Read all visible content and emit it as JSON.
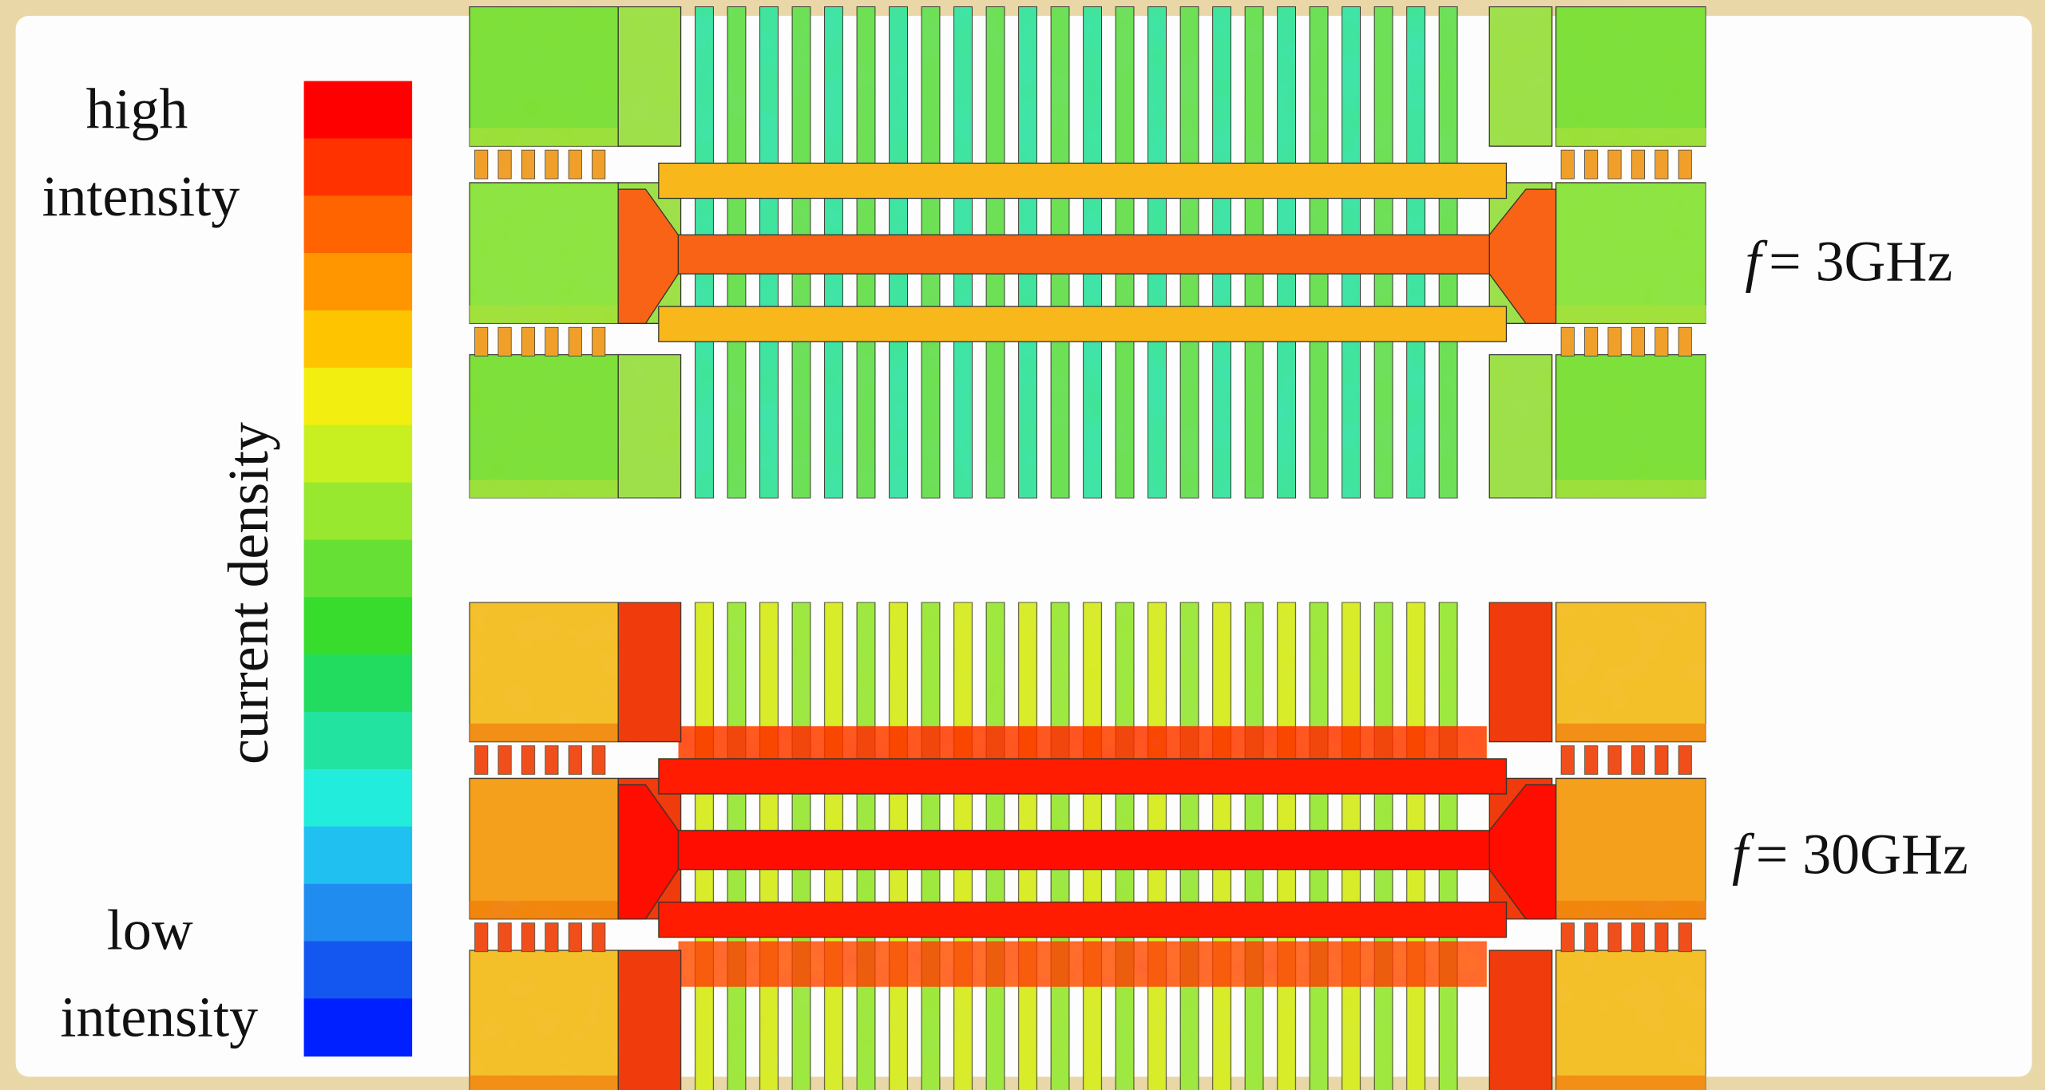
{
  "colorbar": {
    "title": "current density",
    "high_label": [
      "high",
      "intensity"
    ],
    "low_label": [
      "low",
      "intensity"
    ],
    "colors": [
      "#ff0000",
      "#ff3200",
      "#ff6400",
      "#ff9600",
      "#ffc400",
      "#f2ee10",
      "#c8f020",
      "#98e830",
      "#66e034",
      "#38dc2c",
      "#22dc60",
      "#22e4a0",
      "#22ecdc",
      "#20c0f0",
      "#208cf0",
      "#1456f0",
      "#0020ff"
    ]
  },
  "panels": [
    {
      "label": {
        "variable": "f",
        "text": "= 3GHz"
      }
    },
    {
      "label": {
        "variable": "f",
        "text": "= 30GHz"
      }
    }
  ]
}
